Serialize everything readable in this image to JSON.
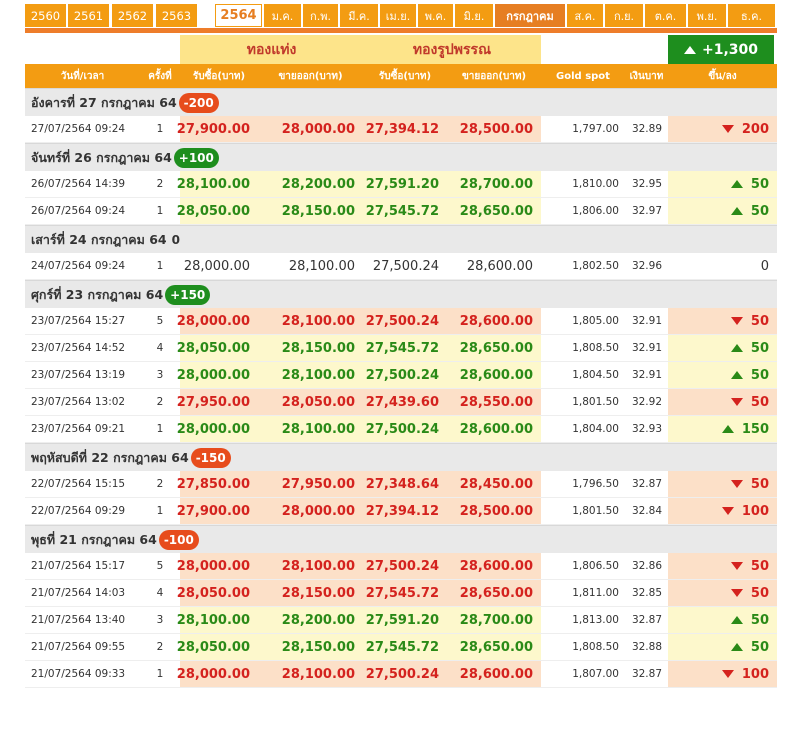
{
  "years": [
    "2560",
    "2561",
    "2562",
    "2563"
  ],
  "current_year": "2564",
  "months": [
    "ม.ค.",
    "ก.พ.",
    "มี.ค.",
    "เม.ย.",
    "พ.ค.",
    "มิ.ย.",
    "กรกฎาคม",
    "ส.ค.",
    "ก.ย.",
    "ต.ค.",
    "พ.ย.",
    "ธ.ค."
  ],
  "current_month_index": 6,
  "header": {
    "gold_bar": "ทองแท่ง",
    "gold_ornament": "ทองรูปพรรณ",
    "net_change": "+1,300",
    "columns": [
      "วันที่/เวลา",
      "ครั้งที่",
      "รับซื้อ(บาท)",
      "ขายออก(บาท)",
      "รับซื้อ(บาท)",
      "ขายออก(บาท)",
      "Gold spot",
      "เงินบาท",
      "ขึ้น/ลง"
    ]
  },
  "days": [
    {
      "label": "อังคารที่ 27 กรกฎาคม 64",
      "change": "-200",
      "dir": "down",
      "rows": [
        {
          "dt": "27/07/2564 09:24",
          "n": "1",
          "bb": "27,900.00",
          "bs": "28,000.00",
          "ob": "27,394.12",
          "os": "28,500.00",
          "spot": "1,797.00",
          "thb": "32.89",
          "chg": "200",
          "dir": "down"
        }
      ]
    },
    {
      "label": "จันทร์ที่ 26 กรกฎาคม 64",
      "change": "+100",
      "dir": "up",
      "rows": [
        {
          "dt": "26/07/2564 14:39",
          "n": "2",
          "bb": "28,100.00",
          "bs": "28,200.00",
          "ob": "27,591.20",
          "os": "28,700.00",
          "spot": "1,810.00",
          "thb": "32.95",
          "chg": "50",
          "dir": "up"
        },
        {
          "dt": "26/07/2564 09:24",
          "n": "1",
          "bb": "28,050.00",
          "bs": "28,150.00",
          "ob": "27,545.72",
          "os": "28,650.00",
          "spot": "1,806.00",
          "thb": "32.97",
          "chg": "50",
          "dir": "up"
        }
      ]
    },
    {
      "label": "เสาร์ที่ 24 กรกฎาคม 64",
      "change": "0",
      "dir": "zero",
      "rows": [
        {
          "dt": "24/07/2564 09:24",
          "n": "1",
          "bb": "28,000.00",
          "bs": "28,100.00",
          "ob": "27,500.24",
          "os": "28,600.00",
          "spot": "1,802.50",
          "thb": "32.96",
          "chg": "0",
          "dir": "flat"
        }
      ]
    },
    {
      "label": "ศุกร์ที่ 23 กรกฎาคม 64",
      "change": "+150",
      "dir": "up",
      "rows": [
        {
          "dt": "23/07/2564 15:27",
          "n": "5",
          "bb": "28,000.00",
          "bs": "28,100.00",
          "ob": "27,500.24",
          "os": "28,600.00",
          "spot": "1,805.00",
          "thb": "32.91",
          "chg": "50",
          "dir": "down"
        },
        {
          "dt": "23/07/2564 14:52",
          "n": "4",
          "bb": "28,050.00",
          "bs": "28,150.00",
          "ob": "27,545.72",
          "os": "28,650.00",
          "spot": "1,808.50",
          "thb": "32.91",
          "chg": "50",
          "dir": "up"
        },
        {
          "dt": "23/07/2564 13:19",
          "n": "3",
          "bb": "28,000.00",
          "bs": "28,100.00",
          "ob": "27,500.24",
          "os": "28,600.00",
          "spot": "1,804.50",
          "thb": "32.91",
          "chg": "50",
          "dir": "up"
        },
        {
          "dt": "23/07/2564 13:02",
          "n": "2",
          "bb": "27,950.00",
          "bs": "28,050.00",
          "ob": "27,439.60",
          "os": "28,550.00",
          "spot": "1,801.50",
          "thb": "32.92",
          "chg": "50",
          "dir": "down"
        },
        {
          "dt": "23/07/2564 09:21",
          "n": "1",
          "bb": "28,000.00",
          "bs": "28,100.00",
          "ob": "27,500.24",
          "os": "28,600.00",
          "spot": "1,804.00",
          "thb": "32.93",
          "chg": "150",
          "dir": "up"
        }
      ]
    },
    {
      "label": "พฤหัสบดีที่ 22 กรกฎาคม 64",
      "change": "-150",
      "dir": "down",
      "rows": [
        {
          "dt": "22/07/2564 15:15",
          "n": "2",
          "bb": "27,850.00",
          "bs": "27,950.00",
          "ob": "27,348.64",
          "os": "28,450.00",
          "spot": "1,796.50",
          "thb": "32.87",
          "chg": "50",
          "dir": "down"
        },
        {
          "dt": "22/07/2564 09:29",
          "n": "1",
          "bb": "27,900.00",
          "bs": "28,000.00",
          "ob": "27,394.12",
          "os": "28,500.00",
          "spot": "1,801.50",
          "thb": "32.84",
          "chg": "100",
          "dir": "down"
        }
      ]
    },
    {
      "label": "พุธที่ 21 กรกฎาคม 64",
      "change": "-100",
      "dir": "down",
      "rows": [
        {
          "dt": "21/07/2564 15:17",
          "n": "5",
          "bb": "28,000.00",
          "bs": "28,100.00",
          "ob": "27,500.24",
          "os": "28,600.00",
          "spot": "1,806.50",
          "thb": "32.86",
          "chg": "50",
          "dir": "down"
        },
        {
          "dt": "21/07/2564 14:03",
          "n": "4",
          "bb": "28,050.00",
          "bs": "28,150.00",
          "ob": "27,545.72",
          "os": "28,650.00",
          "spot": "1,811.00",
          "thb": "32.85",
          "chg": "50",
          "dir": "down"
        },
        {
          "dt": "21/07/2564 13:40",
          "n": "3",
          "bb": "28,100.00",
          "bs": "28,200.00",
          "ob": "27,591.20",
          "os": "28,700.00",
          "spot": "1,813.00",
          "thb": "32.87",
          "chg": "50",
          "dir": "up"
        },
        {
          "dt": "21/07/2564 09:55",
          "n": "2",
          "bb": "28,050.00",
          "bs": "28,150.00",
          "ob": "27,545.72",
          "os": "28,650.00",
          "spot": "1,808.50",
          "thb": "32.88",
          "chg": "50",
          "dir": "up"
        },
        {
          "dt": "21/07/2564 09:33",
          "n": "1",
          "bb": "28,000.00",
          "bs": "28,100.00",
          "ob": "27,500.24",
          "os": "28,600.00",
          "spot": "1,807.00",
          "thb": "32.87",
          "chg": "100",
          "dir": "down"
        }
      ]
    }
  ]
}
